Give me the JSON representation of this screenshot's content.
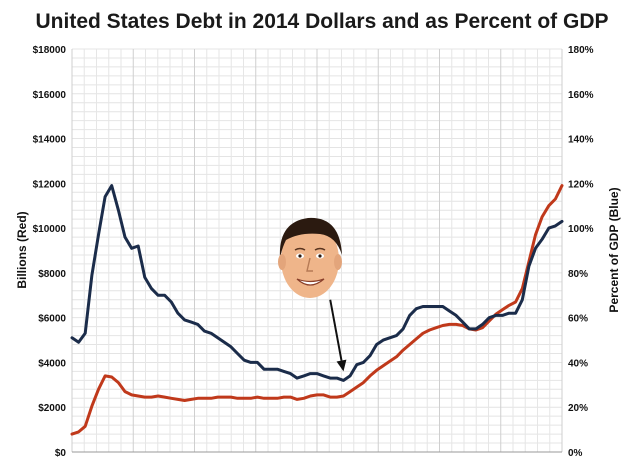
{
  "chart_data": {
    "type": "line",
    "title": "United States Debt in 2014 Dollars and as Percent of GDP",
    "ylabel_left": "Billions (Red)",
    "ylabel_right": "Percent of GDP (Blue)",
    "y_left": {
      "min": 0,
      "max": 18000,
      "ticks": [
        {
          "value": 0,
          "label": "$0"
        },
        {
          "value": 2000,
          "label": "$2000"
        },
        {
          "value": 4000,
          "label": "$4000"
        },
        {
          "value": 6000,
          "label": "$6000"
        },
        {
          "value": 8000,
          "label": "$8000"
        },
        {
          "value": 10000,
          "label": "$10000"
        },
        {
          "value": 12000,
          "label": "$12000"
        },
        {
          "value": 14000,
          "label": "$14000"
        },
        {
          "value": 16000,
          "label": "$16000"
        },
        {
          "value": 18000,
          "label": "$18000"
        }
      ]
    },
    "y_right": {
      "min": 0,
      "max": 180,
      "ticks": [
        {
          "value": 0,
          "label": "0%"
        },
        {
          "value": 20,
          "label": "20%"
        },
        {
          "value": 40,
          "label": "40%"
        },
        {
          "value": 60,
          "label": "60%"
        },
        {
          "value": 80,
          "label": "80%"
        },
        {
          "value": 100,
          "label": "100%"
        },
        {
          "value": 120,
          "label": "120%"
        },
        {
          "value": 140,
          "label": "140%"
        },
        {
          "value": 160,
          "label": "160%"
        },
        {
          "value": 180,
          "label": "180%"
        }
      ]
    },
    "x": {
      "min": 1940,
      "max": 2014
    },
    "grid": true,
    "series": [
      {
        "axis": "left",
        "color": "#c0391b",
        "points": [
          [
            1940,
            800
          ],
          [
            1941,
            900
          ],
          [
            1942,
            1150
          ],
          [
            1943,
            2050
          ],
          [
            1944,
            2800
          ],
          [
            1945,
            3400
          ],
          [
            1946,
            3350
          ],
          [
            1947,
            3100
          ],
          [
            1948,
            2700
          ],
          [
            1949,
            2550
          ],
          [
            1950,
            2500
          ],
          [
            1951,
            2450
          ],
          [
            1952,
            2450
          ],
          [
            1953,
            2500
          ],
          [
            1954,
            2450
          ],
          [
            1955,
            2400
          ],
          [
            1956,
            2350
          ],
          [
            1957,
            2300
          ],
          [
            1958,
            2350
          ],
          [
            1959,
            2400
          ],
          [
            1960,
            2400
          ],
          [
            1961,
            2400
          ],
          [
            1962,
            2450
          ],
          [
            1963,
            2450
          ],
          [
            1964,
            2450
          ],
          [
            1965,
            2400
          ],
          [
            1966,
            2400
          ],
          [
            1967,
            2400
          ],
          [
            1968,
            2450
          ],
          [
            1969,
            2400
          ],
          [
            1970,
            2400
          ],
          [
            1971,
            2400
          ],
          [
            1972,
            2450
          ],
          [
            1973,
            2450
          ],
          [
            1974,
            2350
          ],
          [
            1975,
            2400
          ],
          [
            1976,
            2500
          ],
          [
            1977,
            2550
          ],
          [
            1978,
            2550
          ],
          [
            1979,
            2450
          ],
          [
            1980,
            2450
          ],
          [
            1981,
            2500
          ],
          [
            1982,
            2700
          ],
          [
            1983,
            2900
          ],
          [
            1984,
            3100
          ],
          [
            1985,
            3400
          ],
          [
            1986,
            3650
          ],
          [
            1987,
            3850
          ],
          [
            1988,
            4050
          ],
          [
            1989,
            4250
          ],
          [
            1990,
            4550
          ],
          [
            1991,
            4800
          ],
          [
            1992,
            5050
          ],
          [
            1993,
            5300
          ],
          [
            1994,
            5450
          ],
          [
            1995,
            5550
          ],
          [
            1996,
            5650
          ],
          [
            1997,
            5700
          ],
          [
            1998,
            5700
          ],
          [
            1999,
            5650
          ],
          [
            2000,
            5500
          ],
          [
            2001,
            5450
          ],
          [
            2002,
            5550
          ],
          [
            2003,
            5850
          ],
          [
            2004,
            6150
          ],
          [
            2005,
            6350
          ],
          [
            2006,
            6550
          ],
          [
            2007,
            6700
          ],
          [
            2008,
            7300
          ],
          [
            2009,
            8500
          ],
          [
            2010,
            9700
          ],
          [
            2011,
            10500
          ],
          [
            2012,
            11000
          ],
          [
            2013,
            11300
          ],
          [
            2014,
            11900
          ]
        ]
      },
      {
        "axis": "right",
        "color": "#1b2c4a",
        "points": [
          [
            1940,
            51
          ],
          [
            1941,
            49
          ],
          [
            1942,
            53
          ],
          [
            1943,
            79
          ],
          [
            1944,
            97
          ],
          [
            1945,
            114
          ],
          [
            1946,
            119
          ],
          [
            1947,
            108
          ],
          [
            1948,
            96
          ],
          [
            1949,
            91
          ],
          [
            1950,
            92
          ],
          [
            1951,
            78
          ],
          [
            1952,
            73
          ],
          [
            1953,
            70
          ],
          [
            1954,
            70
          ],
          [
            1955,
            67
          ],
          [
            1956,
            62
          ],
          [
            1957,
            59
          ],
          [
            1958,
            58
          ],
          [
            1959,
            57
          ],
          [
            1960,
            54
          ],
          [
            1961,
            53
          ],
          [
            1962,
            51
          ],
          [
            1963,
            49
          ],
          [
            1964,
            47
          ],
          [
            1965,
            44
          ],
          [
            1966,
            41
          ],
          [
            1967,
            40
          ],
          [
            1968,
            40
          ],
          [
            1969,
            37
          ],
          [
            1970,
            37
          ],
          [
            1971,
            37
          ],
          [
            1972,
            36
          ],
          [
            1973,
            35
          ],
          [
            1974,
            33
          ],
          [
            1975,
            34
          ],
          [
            1976,
            35
          ],
          [
            1977,
            35
          ],
          [
            1978,
            34
          ],
          [
            1979,
            33
          ],
          [
            1980,
            33
          ],
          [
            1981,
            32
          ],
          [
            1982,
            34
          ],
          [
            1983,
            39
          ],
          [
            1984,
            40
          ],
          [
            1985,
            43
          ],
          [
            1986,
            48
          ],
          [
            1987,
            50
          ],
          [
            1988,
            51
          ],
          [
            1989,
            52
          ],
          [
            1990,
            55
          ],
          [
            1991,
            61
          ],
          [
            1992,
            64
          ],
          [
            1993,
            65
          ],
          [
            1994,
            65
          ],
          [
            1995,
            65
          ],
          [
            1996,
            65
          ],
          [
            1997,
            63
          ],
          [
            1998,
            61
          ],
          [
            1999,
            58
          ],
          [
            2000,
            55
          ],
          [
            2001,
            55
          ],
          [
            2002,
            57
          ],
          [
            2003,
            60
          ],
          [
            2004,
            61
          ],
          [
            2005,
            61
          ],
          [
            2006,
            62
          ],
          [
            2007,
            62
          ],
          [
            2008,
            68
          ],
          [
            2009,
            83
          ],
          [
            2010,
            91
          ],
          [
            2011,
            95
          ],
          [
            2012,
            100
          ],
          [
            2013,
            101
          ],
          [
            2014,
            103
          ]
        ]
      }
    ],
    "annotations": [
      {
        "type": "image",
        "subject": "portrait",
        "x": 1979,
        "y_left": 8500
      },
      {
        "type": "arrow",
        "from": [
          1979,
          6800
        ],
        "to": [
          1981,
          3600
        ]
      }
    ]
  }
}
